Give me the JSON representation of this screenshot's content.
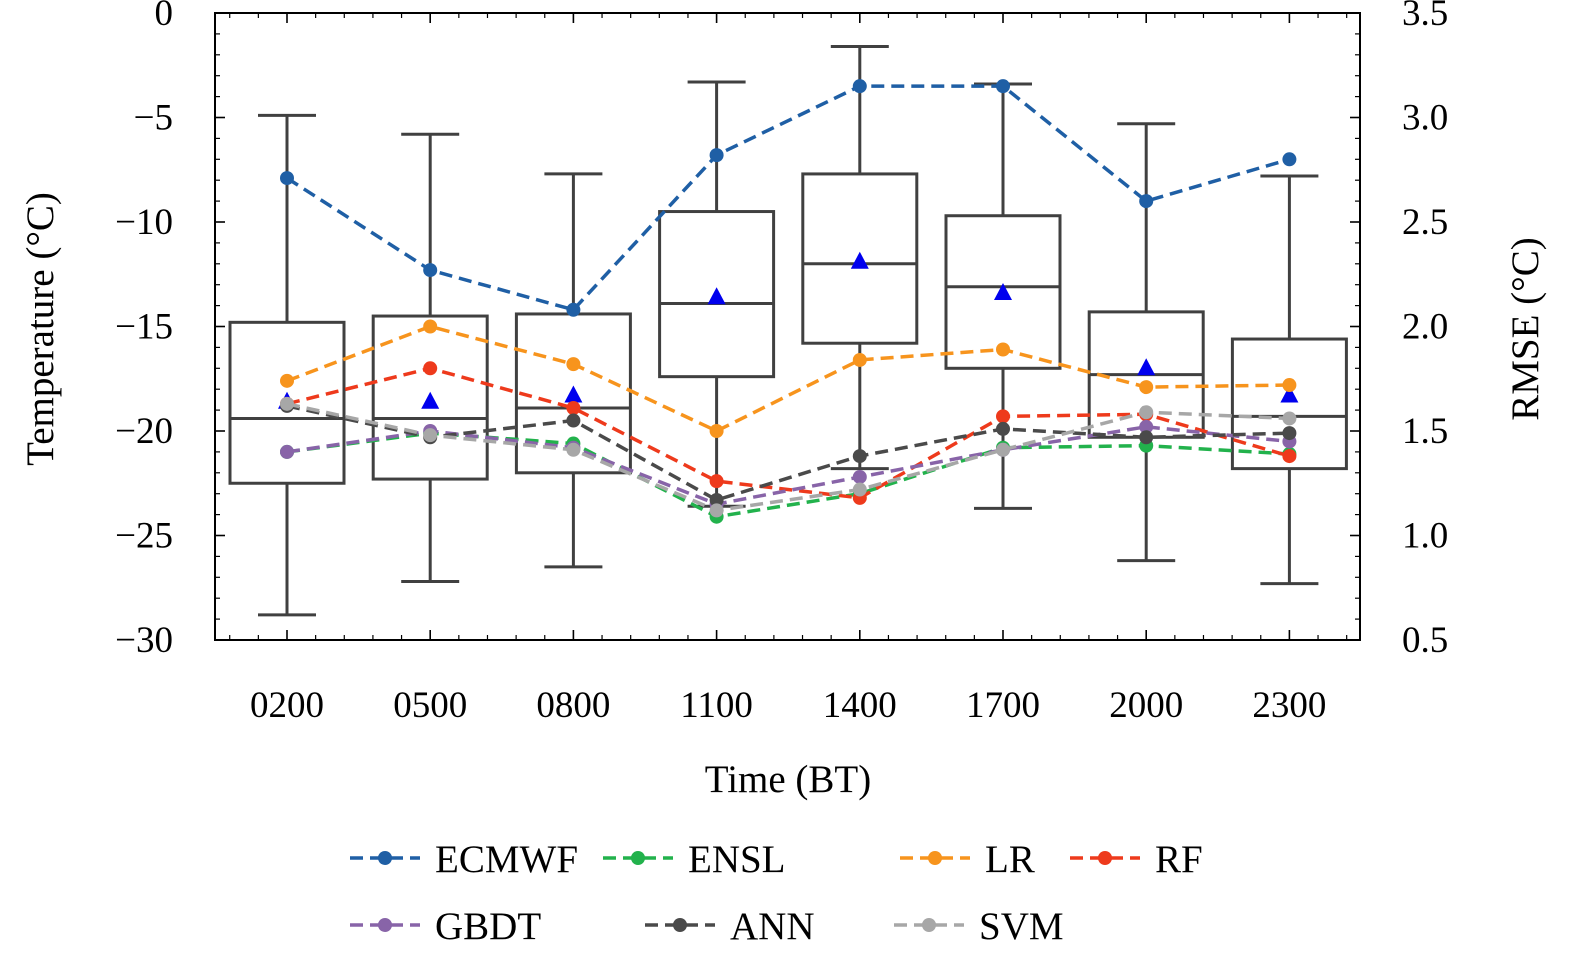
{
  "chart_data": {
    "type": "box",
    "xlabel": "Time (BT)",
    "ylabel_left": "Temperature (°C)",
    "ylabel_right": "RMSE (°C)",
    "categories": [
      "0200",
      "0500",
      "0800",
      "1100",
      "1400",
      "1700",
      "2000",
      "2300"
    ],
    "ylim_left": [
      -30,
      0
    ],
    "yticks_left": [
      0,
      -5,
      -10,
      -15,
      -20,
      -25,
      -30
    ],
    "ytick_labels_left": [
      "0",
      "−5",
      "−10",
      "−15",
      "−20",
      "−25",
      "−30"
    ],
    "ylim_right": [
      0.5,
      3.5
    ],
    "yticks_right": [
      0.5,
      1.0,
      1.5,
      2.0,
      2.5,
      3.0,
      3.5
    ],
    "ytick_labels_right": [
      "0.5",
      "1.0",
      "1.5",
      "2.0",
      "2.5",
      "3.0",
      "3.5"
    ],
    "boxes": [
      {
        "whislo": -28.8,
        "q1": -22.5,
        "med": -19.4,
        "q3": -14.8,
        "whishi": -4.9,
        "mean": -18.6
      },
      {
        "whislo": -27.2,
        "q1": -22.3,
        "med": -19.4,
        "q3": -14.5,
        "whishi": -5.8,
        "mean": -18.6
      },
      {
        "whislo": -26.5,
        "q1": -22.0,
        "med": -18.9,
        "q3": -14.4,
        "whishi": -7.7,
        "mean": -18.3
      },
      {
        "whislo": -23.6,
        "q1": -17.4,
        "med": -13.9,
        "q3": -9.5,
        "whishi": -3.3,
        "mean": -13.6
      },
      {
        "whislo": -21.8,
        "q1": -15.8,
        "med": -12.0,
        "q3": -7.7,
        "whishi": -1.6,
        "mean": -11.9
      },
      {
        "whislo": -23.7,
        "q1": -17.0,
        "med": -13.1,
        "q3": -9.7,
        "whishi": -3.4,
        "mean": -13.4
      },
      {
        "whislo": -26.2,
        "q1": -20.3,
        "med": -17.3,
        "q3": -14.3,
        "whishi": -5.3,
        "mean": -17.0
      },
      {
        "whislo": -27.3,
        "q1": -21.8,
        "med": -19.3,
        "q3": -15.6,
        "whishi": -7.8,
        "mean": -18.3
      }
    ],
    "series": [
      {
        "name": "ECMWF",
        "color": "#1f5fa5",
        "values": [
          2.71,
          2.27,
          2.08,
          2.82,
          3.15,
          3.15,
          2.6,
          2.8
        ]
      },
      {
        "name": "ENSL",
        "color": "#22b24c",
        "values": [
          1.4,
          1.49,
          1.44,
          1.09,
          1.2,
          1.42,
          1.43,
          1.39
        ]
      },
      {
        "name": "LR",
        "color": "#f7941d",
        "values": [
          1.74,
          2.0,
          1.82,
          1.5,
          1.84,
          1.89,
          1.71,
          1.72
        ]
      },
      {
        "name": "RF",
        "color": "#ee3a1c",
        "values": [
          1.63,
          1.8,
          1.61,
          1.26,
          1.18,
          1.57,
          1.58,
          1.38
        ]
      },
      {
        "name": "GBDT",
        "color": "#8864a8",
        "values": [
          1.4,
          1.5,
          1.42,
          1.15,
          1.28,
          1.41,
          1.52,
          1.45
        ]
      },
      {
        "name": "ANN",
        "color": "#4a4a4a",
        "values": [
          1.62,
          1.47,
          1.55,
          1.17,
          1.38,
          1.51,
          1.47,
          1.49
        ]
      },
      {
        "name": "SVM",
        "color": "#a7a7a7",
        "values": [
          1.63,
          1.48,
          1.41,
          1.12,
          1.22,
          1.41,
          1.59,
          1.56
        ]
      }
    ],
    "legend_position": "bottom-center",
    "grid": false
  }
}
